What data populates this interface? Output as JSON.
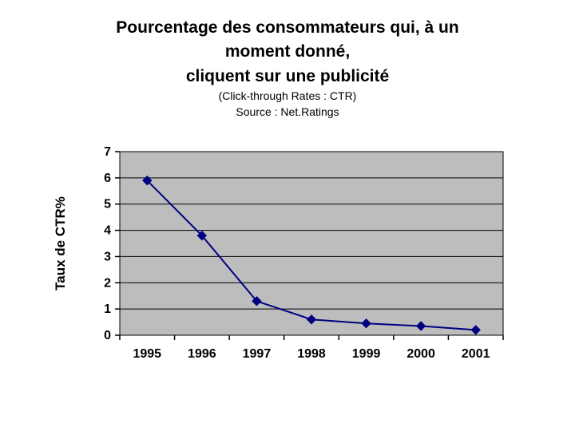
{
  "title": {
    "line1": "Pourcentage des consommateurs qui, à un",
    "line2": "moment donné,",
    "line3": "cliquent sur une publicité",
    "sub1": "(Click-through Rates : CTR)",
    "sub2": "Source : Net.Ratings"
  },
  "chart_data": {
    "type": "line",
    "title": "Pourcentage des consommateurs qui, à un moment donné, cliquent sur une publicité (Click-through Rates : CTR) Source : Net.Ratings",
    "categories": [
      "1995",
      "1996",
      "1997",
      "1998",
      "1999",
      "2000",
      "2001"
    ],
    "values": [
      5.9,
      3.8,
      1.3,
      0.6,
      0.45,
      0.35,
      0.2
    ],
    "xlabel": "",
    "ylabel": "Taux de CTR%",
    "ylim": [
      0,
      7
    ],
    "ytick_step": 1,
    "grid": true,
    "legend": "none",
    "marker": "diamond",
    "colors": {
      "line": "#000080",
      "marker": "#000080",
      "plot_bg": "#bdbdbd",
      "grid": "#000000",
      "axis_text": "#000000"
    }
  }
}
